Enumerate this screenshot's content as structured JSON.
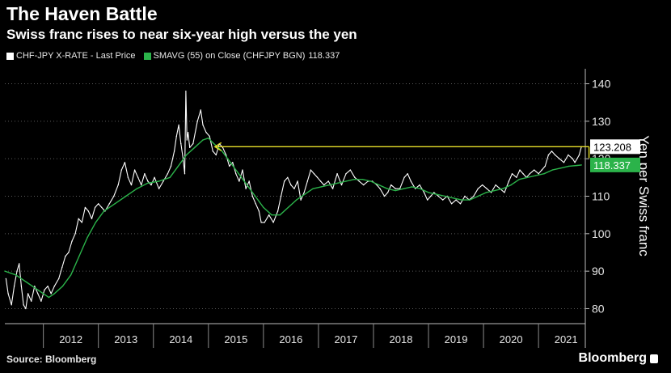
{
  "title": "The Haven Battle",
  "subtitle": "Swiss franc rises to near six-year high versus the yen",
  "source": "Source: Bloomberg",
  "brand": "Bloomberg",
  "colors": {
    "background": "#000000",
    "price": "#ffffff",
    "sma": "#2bb34a",
    "highlight": "#e8e02a",
    "grid": "#5a5a5a"
  },
  "chart_data": {
    "type": "line",
    "title": "The Haven Battle",
    "subtitle": "Swiss franc rises to near six-year high versus the yen",
    "ylabel": "Yen per Swiss franc",
    "ylim": [
      76,
      144
    ],
    "yticks": [
      80,
      90,
      100,
      110,
      120,
      130,
      140
    ],
    "xlim": [
      2011.3,
      2021.85
    ],
    "xticks": [
      {
        "label": "2012",
        "x": 2012.0
      },
      {
        "label": "2013",
        "x": 2013.0
      },
      {
        "label": "2014",
        "x": 2014.0
      },
      {
        "label": "2015",
        "x": 2015.0
      },
      {
        "label": "2016",
        "x": 2016.0
      },
      {
        "label": "2017",
        "x": 2017.0
      },
      {
        "label": "2018",
        "x": 2018.0
      },
      {
        "label": "2019",
        "x": 2019.0
      },
      {
        "label": "2020",
        "x": 2020.0
      },
      {
        "label": "2021",
        "x": 2021.0
      }
    ],
    "grid": "y",
    "legend_position": "top-left",
    "series": [
      {
        "name": "CHF-JPY X-RATE - Last Price",
        "last_value": "123.208",
        "points": [
          [
            2011.32,
            88
          ],
          [
            2011.36,
            84
          ],
          [
            2011.42,
            81
          ],
          [
            2011.47,
            86
          ],
          [
            2011.52,
            90
          ],
          [
            2011.56,
            92
          ],
          [
            2011.6,
            86
          ],
          [
            2011.64,
            81
          ],
          [
            2011.68,
            80
          ],
          [
            2011.72,
            84
          ],
          [
            2011.78,
            82
          ],
          [
            2011.84,
            86
          ],
          [
            2011.9,
            84
          ],
          [
            2011.96,
            82
          ],
          [
            2012.02,
            85
          ],
          [
            2012.08,
            86
          ],
          [
            2012.14,
            84
          ],
          [
            2012.2,
            86
          ],
          [
            2012.28,
            88
          ],
          [
            2012.34,
            91
          ],
          [
            2012.4,
            94
          ],
          [
            2012.46,
            95
          ],
          [
            2012.52,
            98
          ],
          [
            2012.58,
            100
          ],
          [
            2012.64,
            104
          ],
          [
            2012.7,
            103
          ],
          [
            2012.76,
            107
          ],
          [
            2012.82,
            106
          ],
          [
            2012.88,
            104
          ],
          [
            2012.94,
            107
          ],
          [
            2013.0,
            108
          ],
          [
            2013.06,
            107
          ],
          [
            2013.12,
            106
          ],
          [
            2013.2,
            108
          ],
          [
            2013.28,
            110
          ],
          [
            2013.36,
            113
          ],
          [
            2013.42,
            117
          ],
          [
            2013.48,
            119
          ],
          [
            2013.54,
            115
          ],
          [
            2013.6,
            113
          ],
          [
            2013.66,
            117
          ],
          [
            2013.72,
            115
          ],
          [
            2013.78,
            113
          ],
          [
            2013.84,
            116
          ],
          [
            2013.9,
            114
          ],
          [
            2013.96,
            113
          ],
          [
            2014.02,
            115
          ],
          [
            2014.1,
            112
          ],
          [
            2014.18,
            114
          ],
          [
            2014.26,
            116
          ],
          [
            2014.32,
            118
          ],
          [
            2014.38,
            122
          ],
          [
            2014.42,
            126
          ],
          [
            2014.46,
            129
          ],
          [
            2014.5,
            124
          ],
          [
            2014.54,
            120
          ],
          [
            2014.57,
            116
          ],
          [
            2014.59,
            138
          ],
          [
            2014.61,
            125
          ],
          [
            2014.63,
            127
          ],
          [
            2014.66,
            123
          ],
          [
            2014.72,
            124
          ],
          [
            2014.8,
            130
          ],
          [
            2014.86,
            133
          ],
          [
            2014.9,
            129
          ],
          [
            2014.96,
            127
          ],
          [
            2015.02,
            126
          ],
          [
            2015.08,
            122
          ],
          [
            2015.14,
            121
          ],
          [
            2015.2,
            124
          ],
          [
            2015.26,
            123
          ],
          [
            2015.32,
            121
          ],
          [
            2015.38,
            118
          ],
          [
            2015.44,
            119
          ],
          [
            2015.5,
            116
          ],
          [
            2015.56,
            114
          ],
          [
            2015.62,
            117
          ],
          [
            2015.68,
            112
          ],
          [
            2015.74,
            114
          ],
          [
            2015.8,
            110
          ],
          [
            2015.86,
            108
          ],
          [
            2015.92,
            106
          ],
          [
            2015.96,
            103
          ],
          [
            2016.02,
            103
          ],
          [
            2016.1,
            105
          ],
          [
            2016.18,
            103
          ],
          [
            2016.26,
            106
          ],
          [
            2016.32,
            110
          ],
          [
            2016.38,
            114
          ],
          [
            2016.44,
            115
          ],
          [
            2016.5,
            113
          ],
          [
            2016.56,
            112
          ],
          [
            2016.62,
            114
          ],
          [
            2016.68,
            109
          ],
          [
            2016.74,
            111
          ],
          [
            2016.8,
            114
          ],
          [
            2016.86,
            117
          ],
          [
            2016.92,
            116
          ],
          [
            2016.98,
            115
          ],
          [
            2017.04,
            114
          ],
          [
            2017.1,
            113
          ],
          [
            2017.18,
            114
          ],
          [
            2017.26,
            112
          ],
          [
            2017.34,
            116
          ],
          [
            2017.42,
            113
          ],
          [
            2017.5,
            116
          ],
          [
            2017.58,
            117
          ],
          [
            2017.66,
            115
          ],
          [
            2017.74,
            114
          ],
          [
            2017.82,
            113
          ],
          [
            2017.9,
            114
          ],
          [
            2017.98,
            114
          ],
          [
            2018.06,
            113
          ],
          [
            2018.12,
            112
          ],
          [
            2018.2,
            110
          ],
          [
            2018.26,
            111
          ],
          [
            2018.32,
            113
          ],
          [
            2018.4,
            112
          ],
          [
            2018.48,
            112
          ],
          [
            2018.56,
            115
          ],
          [
            2018.62,
            116
          ],
          [
            2018.68,
            114
          ],
          [
            2018.76,
            112
          ],
          [
            2018.84,
            113
          ],
          [
            2018.92,
            111
          ],
          [
            2018.98,
            109
          ],
          [
            2019.04,
            110
          ],
          [
            2019.1,
            111
          ],
          [
            2019.18,
            110
          ],
          [
            2019.26,
            109
          ],
          [
            2019.34,
            110
          ],
          [
            2019.42,
            108
          ],
          [
            2019.5,
            109
          ],
          [
            2019.58,
            108
          ],
          [
            2019.66,
            110
          ],
          [
            2019.74,
            109
          ],
          [
            2019.82,
            110
          ],
          [
            2019.9,
            112
          ],
          [
            2019.98,
            113
          ],
          [
            2020.06,
            112
          ],
          [
            2020.14,
            111
          ],
          [
            2020.22,
            113
          ],
          [
            2020.3,
            112
          ],
          [
            2020.38,
            111
          ],
          [
            2020.46,
            114
          ],
          [
            2020.52,
            116
          ],
          [
            2020.6,
            115
          ],
          [
            2020.66,
            117
          ],
          [
            2020.72,
            116
          ],
          [
            2020.78,
            115
          ],
          [
            2020.84,
            116
          ],
          [
            2020.92,
            117
          ],
          [
            2021.0,
            116
          ],
          [
            2021.06,
            117
          ],
          [
            2021.12,
            118
          ],
          [
            2021.18,
            121
          ],
          [
            2021.24,
            122
          ],
          [
            2021.3,
            121
          ],
          [
            2021.38,
            120
          ],
          [
            2021.46,
            119
          ],
          [
            2021.54,
            121
          ],
          [
            2021.62,
            120
          ],
          [
            2021.66,
            119
          ],
          [
            2021.74,
            121
          ],
          [
            2021.78,
            123.208
          ]
        ]
      },
      {
        "name": "SMAVG (55) on Close (CHFJPY BGN)",
        "last_value": "118.337",
        "points": [
          [
            2011.3,
            90
          ],
          [
            2011.5,
            89
          ],
          [
            2011.7,
            87
          ],
          [
            2011.9,
            85
          ],
          [
            2012.0,
            84
          ],
          [
            2012.1,
            83
          ],
          [
            2012.2,
            84
          ],
          [
            2012.35,
            86
          ],
          [
            2012.5,
            89
          ],
          [
            2012.65,
            94
          ],
          [
            2012.8,
            99
          ],
          [
            2012.95,
            103
          ],
          [
            2013.1,
            106
          ],
          [
            2013.3,
            108
          ],
          [
            2013.5,
            110
          ],
          [
            2013.7,
            112
          ],
          [
            2013.9,
            113.5
          ],
          [
            2014.1,
            114
          ],
          [
            2014.3,
            115
          ],
          [
            2014.45,
            118
          ],
          [
            2014.6,
            121
          ],
          [
            2014.75,
            123
          ],
          [
            2014.9,
            125
          ],
          [
            2015.0,
            125.5
          ],
          [
            2015.1,
            124
          ],
          [
            2015.25,
            122
          ],
          [
            2015.4,
            119
          ],
          [
            2015.55,
            116
          ],
          [
            2015.7,
            113
          ],
          [
            2015.85,
            110
          ],
          [
            2016.0,
            107
          ],
          [
            2016.15,
            105
          ],
          [
            2016.3,
            105
          ],
          [
            2016.45,
            107
          ],
          [
            2016.6,
            109
          ],
          [
            2016.75,
            110.5
          ],
          [
            2016.9,
            112
          ],
          [
            2017.05,
            112.5
          ],
          [
            2017.2,
            113
          ],
          [
            2017.35,
            113.5
          ],
          [
            2017.5,
            114
          ],
          [
            2017.65,
            114.5
          ],
          [
            2017.8,
            114.5
          ],
          [
            2017.95,
            114
          ],
          [
            2018.1,
            113
          ],
          [
            2018.25,
            112
          ],
          [
            2018.4,
            111.5
          ],
          [
            2018.55,
            112
          ],
          [
            2018.7,
            112.5
          ],
          [
            2018.85,
            112
          ],
          [
            2019.0,
            111
          ],
          [
            2019.15,
            110.5
          ],
          [
            2019.3,
            110
          ],
          [
            2019.45,
            109.5
          ],
          [
            2019.6,
            109
          ],
          [
            2019.75,
            109
          ],
          [
            2019.9,
            110
          ],
          [
            2020.05,
            111
          ],
          [
            2020.2,
            111.5
          ],
          [
            2020.35,
            112
          ],
          [
            2020.5,
            113
          ],
          [
            2020.65,
            114.5
          ],
          [
            2020.8,
            115
          ],
          [
            2020.95,
            115.5
          ],
          [
            2021.1,
            116
          ],
          [
            2021.25,
            117
          ],
          [
            2021.4,
            117.5
          ],
          [
            2021.55,
            118
          ],
          [
            2021.7,
            118.2
          ],
          [
            2021.78,
            118.337
          ]
        ]
      }
    ],
    "annotations": [
      {
        "type": "horizontal-line",
        "y": 123.208,
        "x_from": 2015.0,
        "x_to": 2021.8,
        "arrow": "left",
        "color": "#e8e02a"
      }
    ]
  }
}
